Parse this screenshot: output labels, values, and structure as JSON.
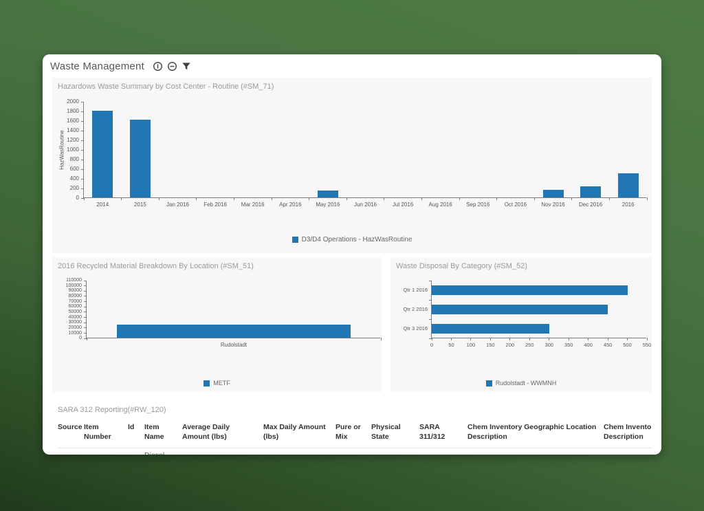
{
  "header": {
    "title": "Waste Management",
    "icons": [
      "info-icon",
      "minus-circle-icon",
      "filter-icon"
    ]
  },
  "colors": {
    "bar": "#2177b4",
    "panel_bg": "#f7f7f8",
    "card_bg": "#ffffff",
    "background_green_top": "#4d7a44",
    "background_green_bottom": "#1f3a1c"
  },
  "chart_data": [
    {
      "id": "sm71",
      "type": "bar",
      "title": "Hazardows Waste Summary by Cost Center - Routine (#SM_71)",
      "ylabel": "HazWasRoutine",
      "xlabel": "",
      "categories": [
        "2014",
        "2015",
        "Jan 2016",
        "Feb 2016",
        "Mar 2016",
        "Apr 2016",
        "May 2016",
        "Jun 2016",
        "Jul 2016",
        "Aug 2016",
        "Sep 2016",
        "Oct 2016",
        "Nov 2016",
        "Dec 2016",
        "2016"
      ],
      "values": [
        1800,
        1610,
        0,
        0,
        0,
        0,
        150,
        0,
        0,
        0,
        0,
        0,
        160,
        225,
        500
      ],
      "ylim": [
        0,
        2000
      ],
      "ytick_step": 200,
      "grid": false,
      "legend": [
        "D3/D4 Operations - HazWasRoutine"
      ],
      "legend_position": "bottom"
    },
    {
      "id": "sm51",
      "type": "bar",
      "title": "2016 Recycled Material Breakdown By Location (#SM_51)",
      "ylabel": "",
      "xlabel": "",
      "categories": [
        "Rudolstadt"
      ],
      "values": [
        25000
      ],
      "ylim": [
        0,
        110000
      ],
      "ytick_step": 10000,
      "grid": false,
      "legend": [
        "METF"
      ],
      "legend_position": "bottom"
    },
    {
      "id": "sm52",
      "type": "bar-horizontal",
      "title": "Waste Disposal By Category (#SM_52)",
      "ylabel": "",
      "xlabel": "",
      "categories": [
        "Qtr 1 2016",
        "Qtr 2 2016",
        "Qtr 3 2016"
      ],
      "values": [
        500,
        450,
        300
      ],
      "xlim": [
        0,
        550
      ],
      "xtick_step": 50,
      "grid": false,
      "legend": [
        "Rudolstadt - WWMNH"
      ],
      "legend_position": "bottom"
    }
  ],
  "table": {
    "title": "SARA 312 Reporting(#RW_120)",
    "columns": [
      "Source",
      "Item Number",
      "Id",
      "Item Name",
      "Average Daily Amount (lbs)",
      "Max Daily Amount (lbs)",
      "Pure or Mix",
      "Physical State",
      "SARA 311/312",
      "Chem Inventory Geographic Location Description",
      "Chem Inventory Org Description"
    ],
    "rows": [
      [
        "",
        "",
        "",
        "Diesel",
        "",
        "",
        "",
        "",
        "",
        "",
        ""
      ]
    ]
  }
}
